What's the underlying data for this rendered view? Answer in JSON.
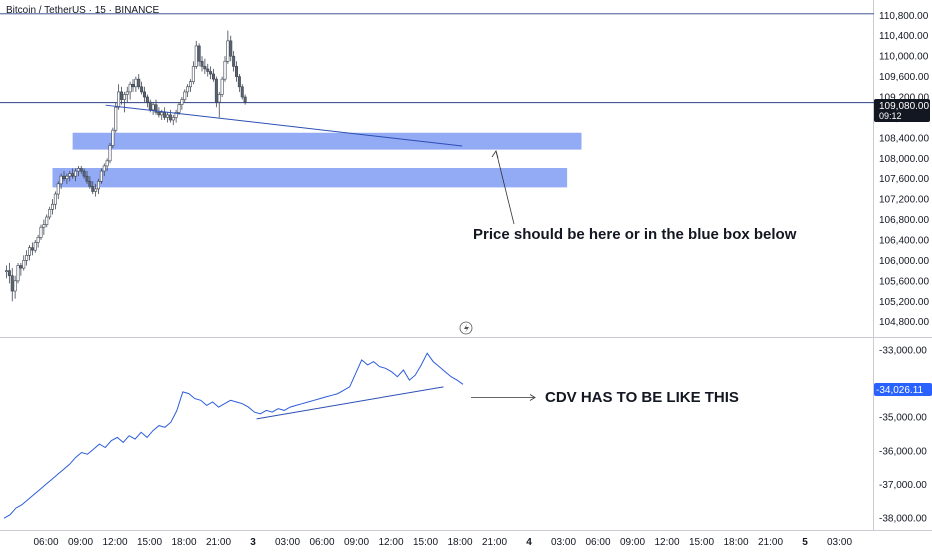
{
  "header": {
    "title": "Bitcoin / TetherUS · 15 · BINANCE"
  },
  "colors": {
    "candle_up": "#ffffff",
    "candle_down": "#5a6370",
    "candle_border": "#3f4652",
    "zone": "#6f8df0",
    "level_line": "#2b3f86",
    "cdv_line": "#2c5cdb",
    "trend_line": "#2c4fb5",
    "price_tag": "#131722",
    "cdv_tag": "#2962ff"
  },
  "price_tag": {
    "value": "109,080.00",
    "countdown": "09:12"
  },
  "cdv_tag": {
    "value": "-34,026.11"
  },
  "annotations": {
    "price_note": "Price should be here or in the blue box below",
    "cdv_note": "CDV HAS TO BE LIKE THIS"
  },
  "chart_data": [
    {
      "type": "candlestick",
      "symbol": "Bitcoin / TetherUS",
      "interval": "15",
      "exchange": "BINANCE",
      "ylim": [
        104500,
        111100
      ],
      "y_ticks": [
        "110,800.00",
        "110,400.00",
        "110,000.00",
        "109,600.00",
        "109,200.00",
        "108,800.00",
        "108,400.00",
        "108,000.00",
        "107,600.00",
        "107,200.00",
        "106,800.00",
        "106,400.00",
        "106,000.00",
        "105,600.00",
        "105,200.00",
        "104,800.00"
      ],
      "y_tick_values": [
        110800,
        110400,
        110000,
        109600,
        109200,
        108800,
        108400,
        108000,
        107600,
        107200,
        106800,
        106400,
        106000,
        105600,
        105200,
        104800
      ],
      "horizontal_levels": [
        110830,
        109090
      ],
      "zones": [
        {
          "from_bar": 23,
          "to_bar": 200,
          "low": 108170,
          "high": 108500
        },
        {
          "from_bar": 16,
          "to_bar": 195,
          "low": 107430,
          "high": 107810
        }
      ],
      "trend_line": {
        "from": [
          34.5,
          109040
        ],
        "to": [
          158.5,
          108240
        ]
      },
      "candles": [
        [
          105800,
          105900,
          105650,
          105800
        ],
        [
          105800,
          105950,
          105550,
          105700
        ],
        [
          105700,
          105850,
          105200,
          105400
        ],
        [
          105400,
          105700,
          105250,
          105600
        ],
        [
          105600,
          105950,
          105550,
          105900
        ],
        [
          105900,
          105950,
          105700,
          105850
        ],
        [
          105850,
          106100,
          105800,
          106000
        ],
        [
          106000,
          106200,
          105900,
          106100
        ],
        [
          106100,
          106300,
          106000,
          106250
        ],
        [
          106250,
          106350,
          106100,
          106200
        ],
        [
          106200,
          106400,
          106150,
          106350
        ],
        [
          106350,
          106500,
          106250,
          106450
        ],
        [
          106450,
          106700,
          106400,
          106650
        ],
        [
          106650,
          106800,
          106500,
          106700
        ],
        [
          106700,
          106900,
          106650,
          106850
        ],
        [
          106850,
          107050,
          106800,
          107000
        ],
        [
          107000,
          107200,
          106900,
          107100
        ],
        [
          107100,
          107350,
          107000,
          107300
        ],
        [
          107300,
          107550,
          107200,
          107500
        ],
        [
          107500,
          107700,
          107400,
          107650
        ],
        [
          107650,
          107750,
          107550,
          107600
        ],
        [
          107600,
          107700,
          107500,
          107650
        ],
        [
          107650,
          107750,
          107550,
          107700
        ],
        [
          107700,
          107800,
          107600,
          107650
        ],
        [
          107650,
          107800,
          107550,
          107750
        ],
        [
          107750,
          107850,
          107650,
          107800
        ],
        [
          107800,
          107850,
          107700,
          107750
        ],
        [
          107750,
          107800,
          107600,
          107650
        ],
        [
          107650,
          107750,
          107500,
          107550
        ],
        [
          107550,
          107650,
          107400,
          107450
        ],
        [
          107450,
          107550,
          107300,
          107350
        ],
        [
          107350,
          107500,
          107250,
          107400
        ],
        [
          107400,
          107600,
          107300,
          107550
        ],
        [
          107550,
          107800,
          107500,
          107750
        ],
        [
          107750,
          107900,
          107650,
          107850
        ],
        [
          107850,
          108000,
          107750,
          107950
        ],
        [
          107950,
          108300,
          107900,
          108250
        ],
        [
          108250,
          108600,
          108200,
          108550
        ],
        [
          108550,
          109100,
          108500,
          109000
        ],
        [
          109000,
          109450,
          108950,
          109300
        ],
        [
          109300,
          109400,
          109050,
          109150
        ],
        [
          109150,
          109300,
          108900,
          109250
        ],
        [
          109250,
          109400,
          109100,
          109300
        ],
        [
          109300,
          109500,
          109150,
          109450
        ],
        [
          109450,
          109550,
          109300,
          109400
        ],
        [
          109400,
          109600,
          109300,
          109550
        ],
        [
          109550,
          109650,
          109350,
          109400
        ],
        [
          109400,
          109500,
          109250,
          109300
        ],
        [
          109300,
          109400,
          109100,
          109200
        ],
        [
          109200,
          109250,
          109000,
          109100
        ],
        [
          109100,
          109150,
          108900,
          108950
        ],
        [
          108950,
          109100,
          108850,
          109050
        ],
        [
          109050,
          109150,
          108850,
          108900
        ],
        [
          108900,
          109000,
          108800,
          108850
        ],
        [
          108850,
          108950,
          108750,
          108900
        ],
        [
          108900,
          109000,
          108750,
          108800
        ],
        [
          108800,
          108900,
          108700,
          108850
        ],
        [
          108850,
          108950,
          108700,
          108750
        ],
        [
          108750,
          108850,
          108650,
          108800
        ],
        [
          108800,
          108950,
          108700,
          108900
        ],
        [
          108900,
          109100,
          108850,
          109050
        ],
        [
          109050,
          109200,
          108950,
          109150
        ],
        [
          109150,
          109350,
          109100,
          109300
        ],
        [
          109300,
          109450,
          109200,
          109400
        ],
        [
          109400,
          109550,
          109300,
          109500
        ],
        [
          109500,
          109900,
          109450,
          109800
        ],
        [
          109800,
          110300,
          109750,
          110200
        ],
        [
          110200,
          110250,
          109800,
          109900
        ],
        [
          109900,
          110000,
          109700,
          109800
        ],
        [
          109800,
          109950,
          109650,
          109750
        ],
        [
          109750,
          109850,
          109600,
          109700
        ],
        [
          109700,
          109800,
          109550,
          109650
        ],
        [
          109650,
          109750,
          109500,
          109550
        ],
        [
          109550,
          109600,
          109000,
          109100
        ],
        [
          109100,
          109300,
          108800,
          109250
        ],
        [
          109250,
          109600,
          109200,
          109550
        ],
        [
          109550,
          110000,
          109500,
          109900
        ],
        [
          109900,
          110500,
          109850,
          110300
        ],
        [
          110300,
          110400,
          109900,
          110000
        ],
        [
          110000,
          110100,
          109700,
          109800
        ],
        [
          109800,
          109900,
          109500,
          109600
        ],
        [
          109600,
          109650,
          109300,
          109400
        ],
        [
          109400,
          109450,
          109150,
          109200
        ],
        [
          109200,
          109250,
          109050,
          109100
        ]
      ],
      "x_ticks": [
        {
          "label": "06:00",
          "bar": 4,
          "bold": false
        },
        {
          "label": "09:00",
          "bar": 16,
          "bold": false
        },
        {
          "label": "12:00",
          "bar": 28,
          "bold": false
        },
        {
          "label": "15:00",
          "bar": 40,
          "bold": false
        },
        {
          "label": "18:00",
          "bar": 52,
          "bold": false
        },
        {
          "label": "21:00",
          "bar": 64,
          "bold": false
        },
        {
          "label": "3",
          "bar": 76,
          "bold": true
        },
        {
          "label": "03:00",
          "bar": 88,
          "bold": false
        },
        {
          "label": "06:00",
          "bar": 100,
          "bold": false
        },
        {
          "label": "09:00",
          "bar": 112,
          "bold": false
        },
        {
          "label": "12:00",
          "bar": 124,
          "bold": false
        },
        {
          "label": "15:00",
          "bar": 136,
          "bold": false
        },
        {
          "label": "18:00",
          "bar": 148,
          "bold": false
        },
        {
          "label": "21:00",
          "bar": 160,
          "bold": false
        },
        {
          "label": "4",
          "bar": 172,
          "bold": true
        },
        {
          "label": "03:00",
          "bar": 184,
          "bold": false
        },
        {
          "label": "06:00",
          "bar": 196,
          "bold": false
        },
        {
          "label": "09:00",
          "bar": 208,
          "bold": false
        },
        {
          "label": "12:00",
          "bar": 220,
          "bold": false
        },
        {
          "label": "15:00",
          "bar": 232,
          "bold": false
        },
        {
          "label": "18:00",
          "bar": 244,
          "bold": false
        },
        {
          "label": "21:00",
          "bar": 256,
          "bold": false
        },
        {
          "label": "5",
          "bar": 268,
          "bold": true
        },
        {
          "label": "03:00",
          "bar": 280,
          "bold": false
        }
      ]
    },
    {
      "type": "line",
      "name": "CDV",
      "ylim": [
        -38350,
        -32650
      ],
      "y_ticks": [
        "-33,000.00",
        "-35,000.00",
        "-36,000.00",
        "-37,000.00",
        "-38,000.00"
      ],
      "y_tick_values": [
        -33000,
        -35000,
        -36000,
        -37000,
        -38000
      ],
      "trend_line": {
        "from": [
          87,
          -35050
        ],
        "to": [
          152,
          -34100
        ]
      },
      "series": [
        {
          "values": [
            -38000,
            -37900,
            -37700,
            -37600,
            -37450,
            -37300,
            -37150,
            -37000,
            -36850,
            -36700,
            -36550,
            -36400,
            -36200,
            -36050,
            -36100,
            -35950,
            -35800,
            -35900,
            -35700,
            -35600,
            -35750,
            -35550,
            -35650,
            -35450,
            -35600,
            -35400,
            -35250,
            -35300,
            -35150,
            -34800,
            -34250,
            -34300,
            -34450,
            -34500,
            -34650,
            -34550,
            -34700,
            -34600,
            -34500,
            -34550,
            -34600,
            -34700,
            -34850,
            -34900,
            -34800,
            -34850,
            -34750,
            -34800,
            -34700,
            -34650,
            -34600,
            -34550,
            -34500,
            -34450,
            -34400,
            -34350,
            -34300,
            -34200,
            -34100,
            -33700,
            -33300,
            -33450,
            -33350,
            -33500,
            -33550,
            -33650,
            -33800,
            -33600,
            -33900,
            -33750,
            -33450,
            -33100,
            -33350,
            -33500,
            -33650,
            -33800,
            -33900,
            -34026
          ]
        }
      ]
    }
  ]
}
